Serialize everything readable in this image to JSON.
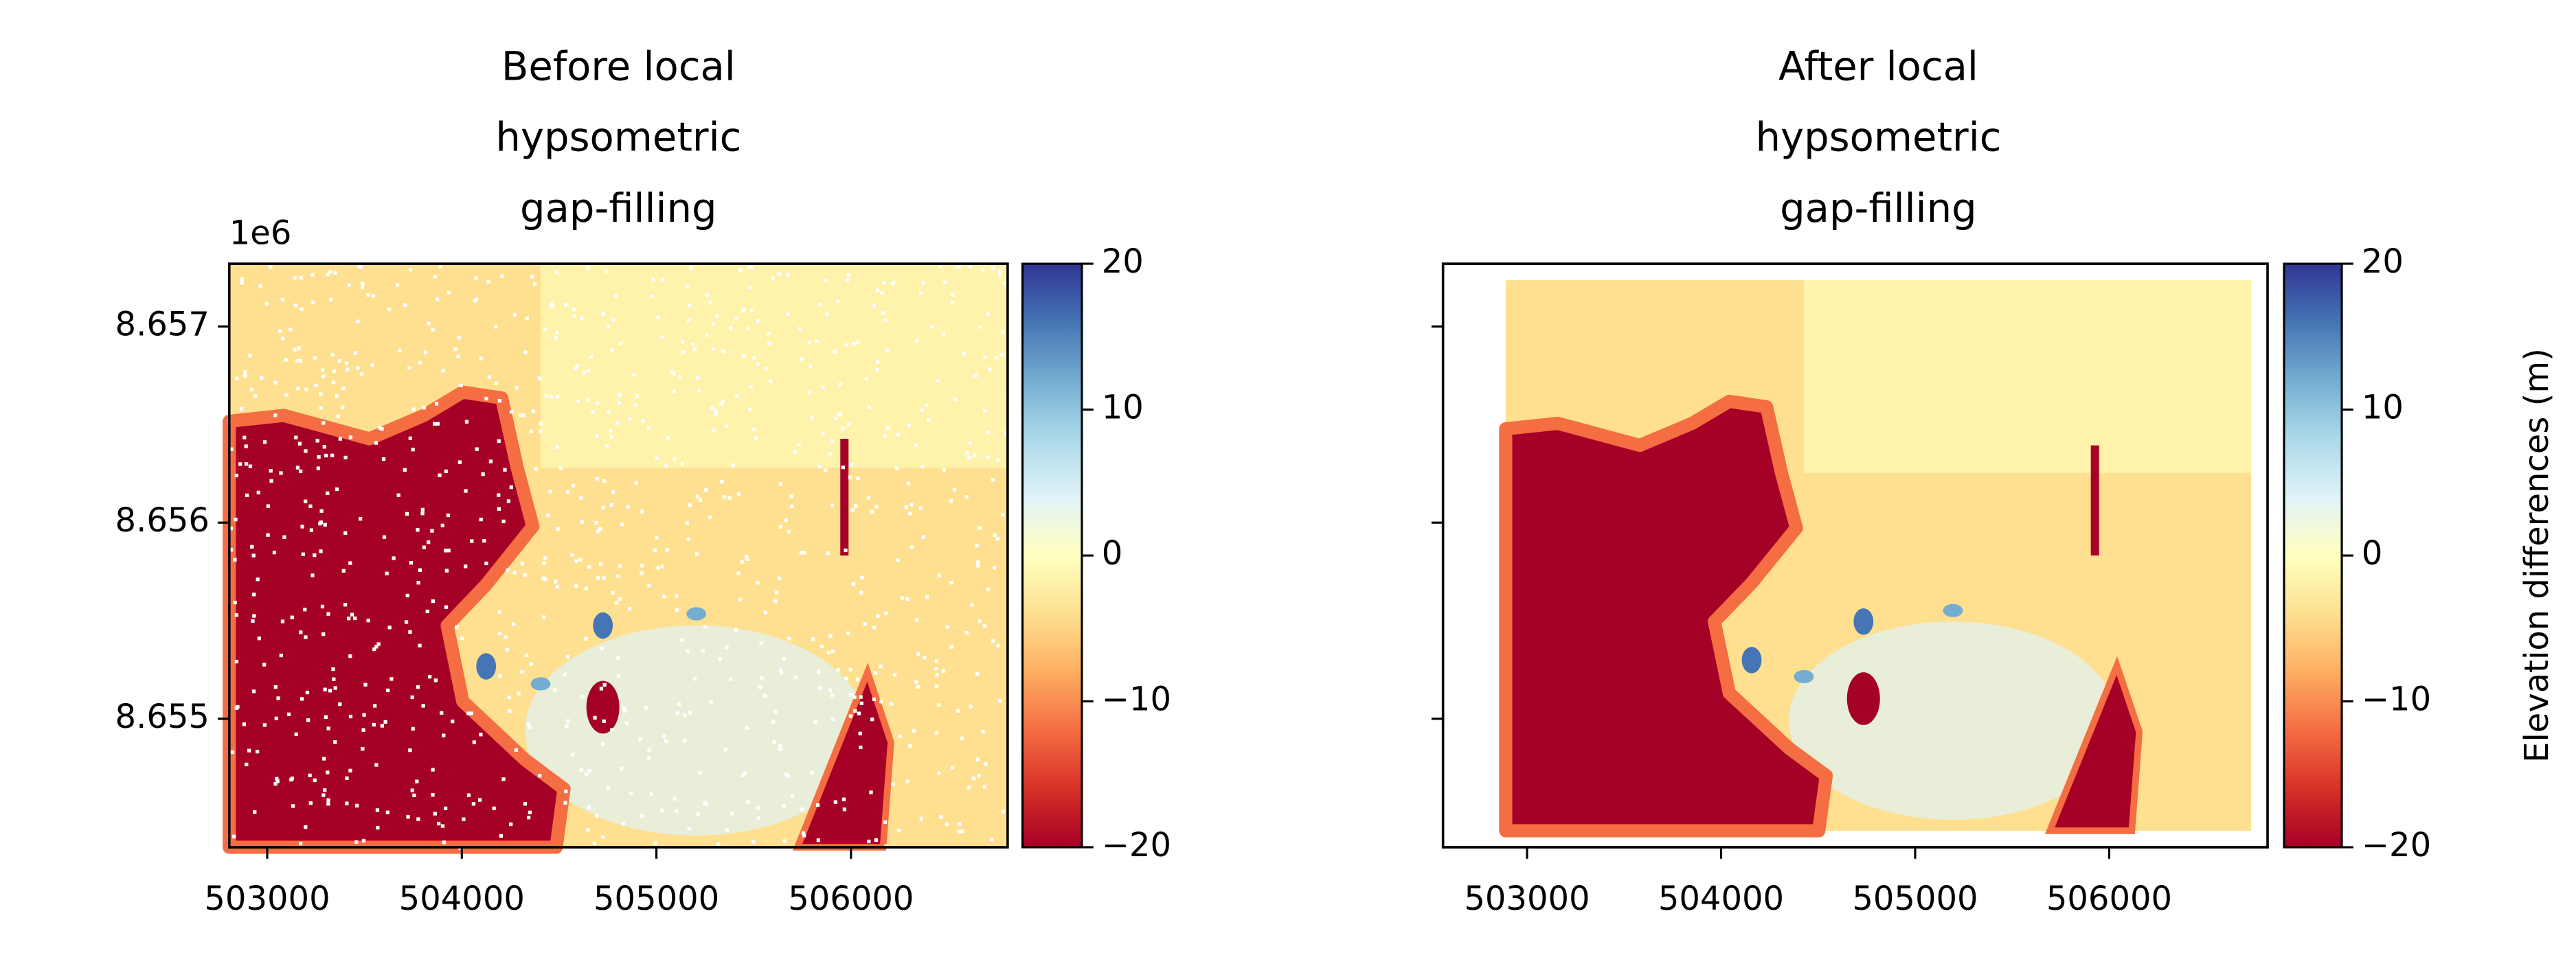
{
  "chart_data": [
    {
      "type": "heatmap",
      "title": [
        "Before local",
        "hypsometric",
        "gap-filling"
      ],
      "xlim": [
        502805,
        506805
      ],
      "xticks": [
        503000,
        504000,
        505000,
        506000
      ],
      "ylim": [
        8654345,
        8657320
      ],
      "yticks": [
        {
          "value": 8655000,
          "label": "8.655"
        },
        {
          "value": 8656000,
          "label": "8.656"
        },
        {
          "value": 8657000,
          "label": "8.657"
        }
      ],
      "y_offset_label": "1e6",
      "nodata_holes": true,
      "clim": [
        -20,
        20
      ],
      "cticks": [
        {
          "value": -20,
          "label": "−20"
        },
        {
          "value": -10,
          "label": "−10"
        },
        0,
        10,
        20
      ],
      "colormap": [
        "#a50026",
        "#d73027",
        "#f46d43",
        "#fdae61",
        "#fee090",
        "#ffffbf",
        "#e0f3f8",
        "#abd9e9",
        "#74add1",
        "#4575b4",
        "#313695"
      ]
    },
    {
      "type": "heatmap",
      "title": [
        "After local",
        "hypsometric",
        "gap-filling"
      ],
      "xlim": [
        502567,
        506816
      ],
      "xticks": [
        503000,
        504000,
        505000,
        506000
      ],
      "ylim": [
        8654345,
        8657320
      ],
      "yticks": [
        8655000,
        8656000,
        8657000
      ],
      "nodata_holes": false,
      "clim": [
        -20,
        20
      ],
      "cticks": [
        {
          "value": -20,
          "label": "−20"
        },
        {
          "value": -10,
          "label": "−10"
        },
        0,
        10,
        20
      ],
      "colorbar_label": "Elevation differences (m)",
      "colormap": [
        "#a50026",
        "#d73027",
        "#f46d43",
        "#fdae61",
        "#fee090",
        "#ffffbf",
        "#e0f3f8",
        "#abd9e9",
        "#74add1",
        "#4575b4",
        "#313695"
      ]
    }
  ]
}
